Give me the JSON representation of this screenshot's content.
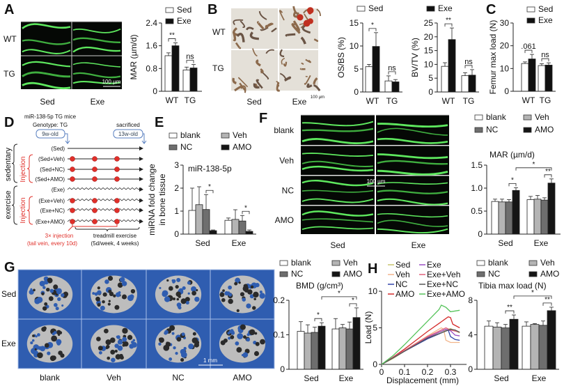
{
  "panel_labels": [
    "A",
    "B",
    "C",
    "D",
    "E",
    "F",
    "G",
    "H"
  ],
  "panel_a": {
    "row_labels": [
      "WT",
      "TG"
    ],
    "col_labels": [
      "Sed",
      "Exe"
    ],
    "scale_bar": "100 µm"
  },
  "panel_b": {
    "row_labels": [
      "WT",
      "TG"
    ],
    "col_labels": [
      "Sed",
      "Exe"
    ],
    "scale_bar": "100 µm"
  },
  "panel_d": {
    "title": "miR-138-5p TG mice",
    "genotype": "Genotype: TG",
    "start_age": "9w-old",
    "end_label": "sacrificed",
    "end_age": "13w-old",
    "groups": [
      "(Sed)",
      "(Sed+Veh)",
      "(Sed+NC)",
      "(Sed+AMO)",
      "(Exe)",
      "(Exe+Veh)",
      "(Exe+NC)",
      "(Exe+AMO)"
    ],
    "brace_labels": [
      "sedentary",
      "exercise"
    ],
    "injection_label": "Injection",
    "injection_note": [
      "3× injection",
      "(tail vein, every 10d)"
    ],
    "exercise_note": [
      "treadmill exercise",
      "(5d/week, 4 weeks)"
    ],
    "colors": {
      "injection": "#e0302a",
      "timeline": "#5a80c0"
    }
  },
  "panel_f": {
    "row_labels": [
      "blank",
      "Veh",
      "NC",
      "AMO"
    ],
    "col_labels": [
      "Sed",
      "Exe"
    ],
    "scale_bar": "100 µm"
  },
  "panel_g": {
    "row_labels": [
      "Sed",
      "Exe"
    ],
    "col_labels": [
      "blank",
      "Veh",
      "NC",
      "AMO"
    ],
    "scale_bar": "1 mm"
  },
  "chart_data": [
    {
      "id": "A",
      "type": "bar",
      "ylabel": "MAR (µm/d)",
      "ylim": [
        0,
        2.4
      ],
      "yticks": [
        "0",
        "0.8",
        "1.6",
        "2.4"
      ],
      "categories": [
        "WT",
        "TG"
      ],
      "series": [
        {
          "name": "Sed",
          "color": "#ffffff",
          "values": [
            1.25,
            0.75
          ],
          "errors": [
            0.1,
            0.1
          ]
        },
        {
          "name": "Exe",
          "color": "#111111",
          "values": [
            1.6,
            0.82
          ],
          "errors": [
            0.1,
            0.12
          ]
        }
      ],
      "legend": [
        0,
        1
      ],
      "annotations": [
        {
          "text": "**",
          "from": [
            0,
            0
          ],
          "to": [
            0,
            1
          ]
        },
        {
          "text": "ns",
          "from": [
            1,
            0
          ],
          "to": [
            1,
            1
          ]
        }
      ]
    },
    {
      "id": "B1",
      "type": "bar",
      "ylabel": "OS/BS (%)",
      "ylim": [
        0,
        15
      ],
      "yticks": [
        "0",
        "5",
        "10",
        "15"
      ],
      "categories": [
        "WT",
        "TG"
      ],
      "series": [
        {
          "name": "Sed",
          "color": "#ffffff",
          "values": [
            5.5,
            2.4
          ],
          "errors": [
            0.5,
            1.1
          ]
        },
        {
          "name": "Exe",
          "color": "#111111",
          "values": [
            9.9,
            2.2
          ],
          "errors": [
            3.0,
            0.5
          ]
        }
      ],
      "legend": [
        0
      ],
      "annotations": [
        {
          "text": "*",
          "from": [
            0,
            0
          ],
          "to": [
            0,
            1
          ]
        },
        {
          "text": "ns",
          "from": [
            1,
            0
          ],
          "to": [
            1,
            1
          ]
        }
      ]
    },
    {
      "id": "B2",
      "type": "bar",
      "ylabel": "BV/TV (%)",
      "ylim": [
        0,
        25
      ],
      "yticks": [
        "0",
        "5",
        "10",
        "15",
        "20",
        "25"
      ],
      "categories": [
        "WT",
        "TG"
      ],
      "series": [
        {
          "name": "Sed",
          "color": "#ffffff",
          "values": [
            9.3,
            5.9
          ],
          "errors": [
            1.3,
            1.1
          ]
        },
        {
          "name": "Exe",
          "color": "#111111",
          "values": [
            19.0,
            6.1
          ],
          "errors": [
            4.2,
            2.0
          ]
        }
      ],
      "legend": [
        1
      ],
      "annotations": [
        {
          "text": "**",
          "from": [
            0,
            0
          ],
          "to": [
            0,
            1
          ]
        },
        {
          "text": "ns",
          "from": [
            1,
            0
          ],
          "to": [
            1,
            1
          ]
        }
      ]
    },
    {
      "id": "C",
      "type": "bar",
      "ylabel": "Femur max load (N)",
      "ylim": [
        0,
        30
      ],
      "yticks": [
        "0",
        "10",
        "20",
        "30"
      ],
      "categories": [
        "WT",
        "TG"
      ],
      "series": [
        {
          "name": "Sed",
          "color": "#ffffff",
          "values": [
            12.2,
            11.3
          ],
          "errors": [
            0.7,
            0.8
          ]
        },
        {
          "name": "Exe",
          "color": "#111111",
          "values": [
            14.2,
            11.5
          ],
          "errors": [
            2.0,
            1.0
          ]
        }
      ],
      "legend": [
        0,
        1
      ],
      "annotations": [
        {
          "text": ".061",
          "from": [
            0,
            0
          ],
          "to": [
            0,
            1
          ]
        },
        {
          "text": "ns",
          "from": [
            1,
            0
          ],
          "to": [
            1,
            1
          ]
        }
      ]
    },
    {
      "id": "E",
      "type": "bar",
      "ylabel": [
        "miRNA fold change",
        "in bone tissue"
      ],
      "title": "miR-138-5p",
      "ylim": [
        0,
        3
      ],
      "yticks": [
        "0",
        "1",
        "2",
        "3"
      ],
      "categories": [
        "Sed",
        "Exe"
      ],
      "series": [
        {
          "name": "blank",
          "color": "#ffffff",
          "values": [
            1.03,
            0.6
          ],
          "errors": [
            0.97,
            0.1
          ]
        },
        {
          "name": "Veh",
          "color": "#b4b4b4",
          "values": [
            1.28,
            0.64
          ],
          "errors": [
            0.78,
            0.42
          ]
        },
        {
          "name": "NC",
          "color": "#6e6e6e",
          "values": [
            1.07,
            0.57
          ],
          "errors": [
            0.65,
            0.24
          ]
        },
        {
          "name": "AMO",
          "color": "#151515",
          "values": [
            0.15,
            0.12
          ],
          "errors": [
            0.03,
            0.06
          ]
        }
      ],
      "legend": [
        0,
        1,
        2,
        3
      ],
      "annotations": [
        {
          "text": "*",
          "from": [
            0,
            2
          ],
          "to": [
            0,
            3
          ]
        },
        {
          "text": "*",
          "from": [
            1,
            2
          ],
          "to": [
            1,
            3
          ]
        }
      ]
    },
    {
      "id": "F",
      "type": "bar",
      "title": "MAR (µm/d)",
      "ylim": [
        0,
        1.5
      ],
      "yticks": [
        "0",
        "0.5",
        "1.0",
        "1.5"
      ],
      "categories": [
        "Sed",
        "Exe"
      ],
      "series": [
        {
          "name": "blank",
          "color": "#ffffff",
          "values": [
            0.71,
            0.75
          ],
          "errors": [
            0.05,
            0.07
          ]
        },
        {
          "name": "Veh",
          "color": "#b4b4b4",
          "values": [
            0.7,
            0.76
          ],
          "errors": [
            0.06,
            0.08
          ]
        },
        {
          "name": "NC",
          "color": "#6e6e6e",
          "values": [
            0.7,
            0.74
          ],
          "errors": [
            0.05,
            0.05
          ]
        },
        {
          "name": "AMO",
          "color": "#151515",
          "values": [
            0.95,
            1.11
          ],
          "errors": [
            0.06,
            0.09
          ]
        }
      ],
      "legend": [
        0,
        1,
        2,
        3
      ],
      "annotations": [
        {
          "text": "*",
          "from": [
            0,
            2
          ],
          "to": [
            0,
            3
          ]
        },
        {
          "text": "**",
          "from": [
            1,
            2
          ],
          "to": [
            1,
            3
          ]
        },
        {
          "text": "*",
          "from": [
            0,
            3
          ],
          "to": [
            1,
            3
          ]
        }
      ]
    },
    {
      "id": "G",
      "type": "bar",
      "title": "BMD (g/cm³)",
      "ylim": [
        0,
        0.2
      ],
      "yticks": [
        "0",
        "0.1",
        "0.2"
      ],
      "categories": [
        "Sed",
        "Exe"
      ],
      "series": [
        {
          "name": "blank",
          "color": "#ffffff",
          "values": [
            0.11,
            0.117
          ],
          "errors": [
            0.028,
            0.03
          ]
        },
        {
          "name": "Veh",
          "color": "#b4b4b4",
          "values": [
            0.105,
            0.12
          ],
          "errors": [
            0.024,
            0.01
          ]
        },
        {
          "name": "NC",
          "color": "#6e6e6e",
          "values": [
            0.107,
            0.117
          ],
          "errors": [
            0.015,
            0.02
          ]
        },
        {
          "name": "AMO",
          "color": "#151515",
          "values": [
            0.125,
            0.15
          ],
          "errors": [
            0.01,
            0.028
          ]
        }
      ],
      "legend": [
        0,
        1,
        2,
        3
      ],
      "annotations": [
        {
          "text": "*",
          "from": [
            0,
            2
          ],
          "to": [
            0,
            3
          ]
        },
        {
          "text": "*",
          "from": [
            1,
            2
          ],
          "to": [
            1,
            3
          ]
        },
        {
          "text": "*",
          "from": [
            0,
            3
          ],
          "to": [
            1,
            3
          ]
        }
      ]
    },
    {
      "id": "H1",
      "type": "line",
      "xlabel": "Displacement (mm)",
      "ylabel": "Load (N)",
      "xlim": [
        0,
        0.37
      ],
      "ylim": [
        0,
        10
      ],
      "xticks": [
        "0",
        "0.1",
        "0.2",
        "0.3"
      ],
      "yticks": [
        "0",
        "5",
        "10"
      ],
      "series": [
        {
          "name": "Sed",
          "color": "#c8c46c",
          "points": [
            [
              0,
              0
            ],
            [
              0.05,
              0.8
            ],
            [
              0.1,
              1.8
            ],
            [
              0.15,
              2.7
            ],
            [
              0.2,
              3.6
            ],
            [
              0.25,
              4.4
            ],
            [
              0.3,
              4.9
            ],
            [
              0.32,
              4.6
            ],
            [
              0.34,
              4.3
            ]
          ]
        },
        {
          "name": "Veh",
          "color": "#f2b48a",
          "points": [
            [
              0,
              0
            ],
            [
              0.1,
              1.9
            ],
            [
              0.2,
              3.9
            ],
            [
              0.26,
              5.0
            ],
            [
              0.27,
              4.8
            ],
            [
              0.28,
              3.3
            ],
            [
              0.3,
              3.0
            ],
            [
              0.34,
              3.0
            ]
          ]
        },
        {
          "name": "NC",
          "color": "#3344aa",
          "points": [
            [
              0,
              0
            ],
            [
              0.1,
              1.8
            ],
            [
              0.2,
              3.5
            ],
            [
              0.29,
              4.7
            ],
            [
              0.3,
              3.8
            ],
            [
              0.32,
              3.4
            ],
            [
              0.34,
              3.3
            ]
          ]
        },
        {
          "name": "AMO",
          "color": "#d42a2a",
          "points": [
            [
              0,
              0
            ],
            [
              0.05,
              1.0
            ],
            [
              0.1,
              2.1
            ],
            [
              0.15,
              3.3
            ],
            [
              0.2,
              4.5
            ],
            [
              0.25,
              5.6
            ],
            [
              0.29,
              6.5
            ],
            [
              0.3,
              6.4
            ],
            [
              0.31,
              5.5
            ],
            [
              0.34,
              5.0
            ]
          ]
        },
        {
          "name": "Exe",
          "color": "#9b4fc4",
          "points": [
            [
              0,
              0
            ],
            [
              0.1,
              1.9
            ],
            [
              0.2,
              3.7
            ],
            [
              0.28,
              4.8
            ],
            [
              0.3,
              4.6
            ],
            [
              0.32,
              4.0
            ],
            [
              0.34,
              3.9
            ]
          ]
        },
        {
          "name": "Exe+Veh",
          "color": "#e0607a",
          "points": [
            [
              0,
              0
            ],
            [
              0.1,
              1.9
            ],
            [
              0.2,
              3.8
            ],
            [
              0.28,
              5.0
            ],
            [
              0.3,
              4.7
            ],
            [
              0.34,
              4.4
            ]
          ]
        },
        {
          "name": "Exe+NC",
          "color": "#555555",
          "points": [
            [
              0,
              0
            ],
            [
              0.1,
              1.8
            ],
            [
              0.2,
              3.6
            ],
            [
              0.3,
              4.8
            ],
            [
              0.32,
              4.7
            ],
            [
              0.34,
              4.4
            ]
          ]
        },
        {
          "name": "Exe+AMO",
          "color": "#55c35a",
          "points": [
            [
              0,
              0
            ],
            [
              0.05,
              1.2
            ],
            [
              0.1,
              2.7
            ],
            [
              0.15,
              4.3
            ],
            [
              0.2,
              5.9
            ],
            [
              0.25,
              7.5
            ],
            [
              0.26,
              8.1
            ],
            [
              0.28,
              7.8
            ],
            [
              0.3,
              7.2
            ],
            [
              0.34,
              7.4
            ]
          ]
        }
      ],
      "legend": [
        0,
        1,
        2,
        3,
        4,
        5,
        6,
        7
      ]
    },
    {
      "id": "H2",
      "type": "bar",
      "title": "Tibia max load (N)",
      "ylim": [
        0,
        8
      ],
      "yticks": [
        "0",
        "4",
        "8"
      ],
      "categories": [
        "Sed",
        "Exe"
      ],
      "series": [
        {
          "name": "blank",
          "color": "#ffffff",
          "values": [
            5.0,
            5.0
          ],
          "errors": [
            0.6,
            0.5
          ]
        },
        {
          "name": "Veh",
          "color": "#b4b4b4",
          "values": [
            4.9,
            5.2
          ],
          "errors": [
            0.5,
            0.1
          ]
        },
        {
          "name": "NC",
          "color": "#6e6e6e",
          "values": [
            4.8,
            5.1
          ],
          "errors": [
            0.4,
            0.5
          ]
        },
        {
          "name": "AMO",
          "color": "#151515",
          "values": [
            5.8,
            6.8
          ],
          "errors": [
            0.5,
            0.4
          ]
        }
      ],
      "legend": [
        0,
        1,
        2,
        3
      ],
      "annotations": [
        {
          "text": "**",
          "from": [
            0,
            2
          ],
          "to": [
            0,
            3
          ]
        },
        {
          "text": "**",
          "from": [
            1,
            2
          ],
          "to": [
            1,
            3
          ]
        },
        {
          "text": "*",
          "from": [
            0,
            3
          ],
          "to": [
            1,
            3
          ]
        }
      ]
    }
  ]
}
